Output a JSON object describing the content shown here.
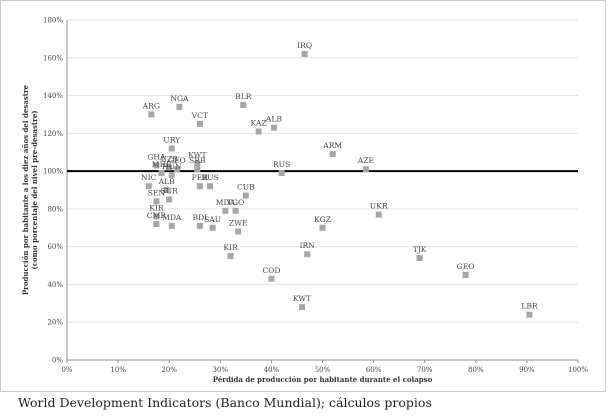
{
  "chart_data": {
    "type": "scatter",
    "xlabel": "Pérdida de producción por habitante durante el colapso",
    "ylabel_lines": [
      "Producción por habitante a los diez años del desastre",
      "(como porcentaje del nivel pre-desastre)"
    ],
    "xlim": [
      0,
      100
    ],
    "ylim": [
      0,
      180
    ],
    "x_ticks": [
      0,
      10,
      20,
      30,
      40,
      50,
      60,
      70,
      80,
      90,
      100
    ],
    "y_ticks": [
      0,
      20,
      40,
      60,
      80,
      100,
      120,
      140,
      160,
      180
    ],
    "x_tick_labels": [
      "0%",
      "10%",
      "20%",
      "30%",
      "40%",
      "50%",
      "60%",
      "70%",
      "80%",
      "90%",
      "100%"
    ],
    "y_tick_labels": [
      "0%",
      "20%",
      "40%",
      "60%",
      "80%",
      "100%",
      "120%",
      "140%",
      "160%",
      "180%"
    ],
    "reference_line_y": 100,
    "grid": "horizontal",
    "marker_color": "#a6a6a6",
    "line_color": "#000000",
    "points": [
      {
        "label": "IRQ",
        "x": 46.5,
        "y": 162
      },
      {
        "label": "BLR",
        "x": 34.5,
        "y": 135
      },
      {
        "label": "NGA",
        "x": 22,
        "y": 134
      },
      {
        "label": "ARG",
        "x": 16.5,
        "y": 130
      },
      {
        "label": "VCT",
        "x": 26,
        "y": 125
      },
      {
        "label": "ALB",
        "x": 40.5,
        "y": 123
      },
      {
        "label": "KAZ",
        "x": 37.5,
        "y": 121
      },
      {
        "label": "URY",
        "x": 20.5,
        "y": 112
      },
      {
        "label": "ARM",
        "x": 52,
        "y": 109
      },
      {
        "label": "KWT",
        "x": 25.5,
        "y": 104
      },
      {
        "label": "GHA",
        "x": 17.5,
        "y": 103
      },
      {
        "label": "UZB",
        "x": 20,
        "y": 102
      },
      {
        "label": "GEO",
        "x": 21.5,
        "y": 101
      },
      {
        "label": "SRB",
        "x": 25.5,
        "y": 101
      },
      {
        "label": "AZE",
        "x": 58.5,
        "y": 101
      },
      {
        "label": "MHL",
        "x": 18.5,
        "y": 99
      },
      {
        "label": "HUN",
        "x": 20.5,
        "y": 98
      },
      {
        "label": "RUS",
        "x": 42,
        "y": 99
      },
      {
        "label": "PER",
        "x": 26,
        "y": 92
      },
      {
        "label": "RUS",
        "x": 28,
        "y": 92
      },
      {
        "label": "NIC",
        "x": 16,
        "y": 92
      },
      {
        "label": "ALB",
        "x": 19.5,
        "y": 90
      },
      {
        "label": "SUR",
        "x": 20,
        "y": 85
      },
      {
        "label": "CUB",
        "x": 35,
        "y": 87
      },
      {
        "label": "SEN",
        "x": 17.5,
        "y": 84
      },
      {
        "label": "KIR",
        "x": 17.5,
        "y": 76
      },
      {
        "label": "MDA",
        "x": 31,
        "y": 79
      },
      {
        "label": "TGO",
        "x": 33,
        "y": 79
      },
      {
        "label": "UKR",
        "x": 61,
        "y": 77
      },
      {
        "label": "CMR",
        "x": 17.5,
        "y": 72
      },
      {
        "label": "MDA",
        "x": 20.5,
        "y": 71
      },
      {
        "label": "BDI",
        "x": 26,
        "y": 71
      },
      {
        "label": "SAU",
        "x": 28.5,
        "y": 70
      },
      {
        "label": "KGZ",
        "x": 50,
        "y": 70
      },
      {
        "label": "ZWE",
        "x": 33.5,
        "y": 68
      },
      {
        "label": "IRN",
        "x": 47,
        "y": 56
      },
      {
        "label": "KIR",
        "x": 32,
        "y": 55
      },
      {
        "label": "TJK",
        "x": 69,
        "y": 54
      },
      {
        "label": "GEO",
        "x": 78,
        "y": 45
      },
      {
        "label": "COD",
        "x": 40,
        "y": 43
      },
      {
        "label": "KWT",
        "x": 46,
        "y": 28
      },
      {
        "label": "LBR",
        "x": 90.5,
        "y": 24
      }
    ]
  },
  "source_note": "World Development Indicators (Banco Mundial); cálculos propios"
}
